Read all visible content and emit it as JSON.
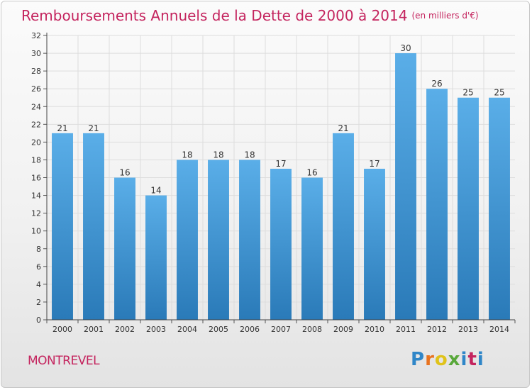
{
  "header": {
    "title": "Remboursements Annuels de la Dette de 2000 à 2014",
    "unit": "(en milliers d'€)"
  },
  "footer": {
    "place": "MONTREVEL",
    "logo": "Proxiti"
  },
  "colors": {
    "title": "#c4245e",
    "bar_top": "#5aaee8",
    "bar_bottom": "#2a7ab8",
    "grid": "#dddddd"
  },
  "chart_data": {
    "type": "bar",
    "title": "Remboursements Annuels de la Dette de 2000 à 2014",
    "subtitle": "(en milliers d'€)",
    "xlabel": "",
    "ylabel": "",
    "categories": [
      "2000",
      "2001",
      "2002",
      "2003",
      "2004",
      "2005",
      "2006",
      "2007",
      "2008",
      "2009",
      "2010",
      "2011",
      "2012",
      "2013",
      "2014"
    ],
    "values": [
      21,
      21,
      16,
      14,
      18,
      18,
      18,
      17,
      16,
      21,
      17,
      30,
      26,
      25,
      25
    ],
    "ylim": [
      0,
      32
    ],
    "yticks": [
      0,
      2,
      4,
      6,
      8,
      10,
      12,
      14,
      16,
      18,
      20,
      22,
      24,
      26,
      28,
      30,
      32
    ],
    "grid": true,
    "legend": "none"
  }
}
